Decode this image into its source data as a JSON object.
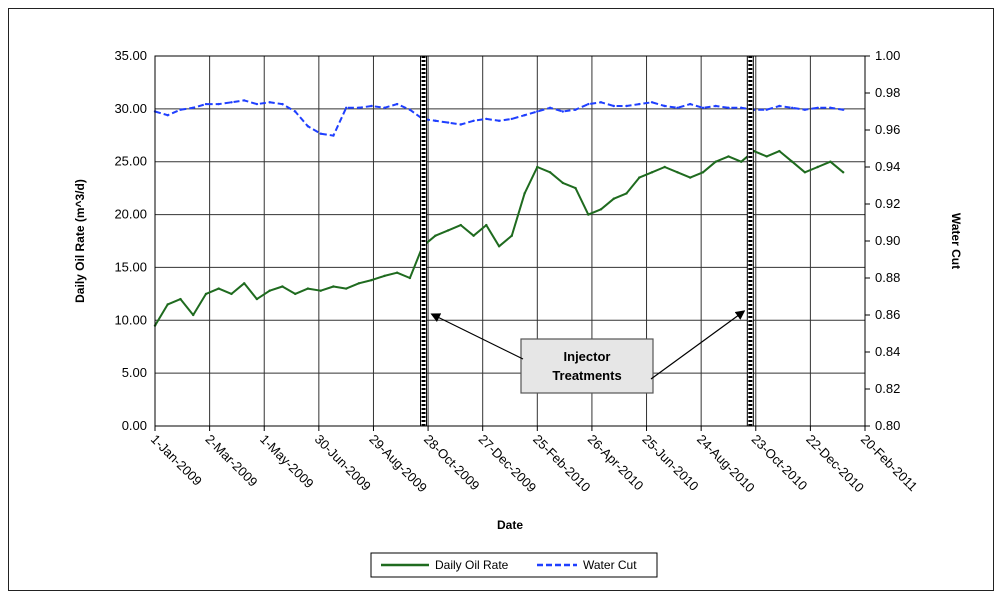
{
  "chart_data": {
    "type": "line",
    "title": "",
    "xlabel": "Date",
    "ylabel": "Daily Oil Rate (m^3/d)",
    "y2label": "Water Cut",
    "x_range": [
      "2009-01-01",
      "2011-02-20"
    ],
    "ylim": [
      0,
      35
    ],
    "y2lim": [
      0.8,
      1.0
    ],
    "x_tick_labels": [
      "1-Jan-2009",
      "2-Mar-2009",
      "1-May-2009",
      "30-Jun-2009",
      "29-Aug-2009",
      "28-Oct-2009",
      "27-Dec-2009",
      "25-Feb-2010",
      "26-Apr-2010",
      "25-Jun-2010",
      "24-Aug-2010",
      "23-Oct-2010",
      "22-Dec-2010",
      "20-Feb-2011"
    ],
    "y_tick_labels": [
      "0.00",
      "5.00",
      "10.00",
      "15.00",
      "20.00",
      "25.00",
      "30.00",
      "35.00"
    ],
    "y2_tick_labels": [
      "0.80",
      "0.82",
      "0.84",
      "0.86",
      "0.88",
      "0.90",
      "0.92",
      "0.94",
      "0.96",
      "0.98",
      "1.00"
    ],
    "grid": true,
    "legend_position": "bottom",
    "series": [
      {
        "name": "Daily Oil Rate",
        "axis": "left",
        "color": "#1f6b1f",
        "style": "solid",
        "points": [
          [
            "2009-01-01",
            9.5
          ],
          [
            "2009-01-15",
            11.5
          ],
          [
            "2009-01-29",
            12.0
          ],
          [
            "2009-02-12",
            10.5
          ],
          [
            "2009-02-26",
            12.5
          ],
          [
            "2009-03-12",
            13.0
          ],
          [
            "2009-03-26",
            12.5
          ],
          [
            "2009-04-09",
            13.5
          ],
          [
            "2009-04-23",
            12.0
          ],
          [
            "2009-05-07",
            12.8
          ],
          [
            "2009-05-21",
            13.2
          ],
          [
            "2009-06-04",
            12.5
          ],
          [
            "2009-06-18",
            13.0
          ],
          [
            "2009-07-02",
            12.8
          ],
          [
            "2009-07-16",
            13.2
          ],
          [
            "2009-07-30",
            13.0
          ],
          [
            "2009-08-13",
            13.5
          ],
          [
            "2009-08-27",
            13.8
          ],
          [
            "2009-09-10",
            14.2
          ],
          [
            "2009-09-24",
            14.5
          ],
          [
            "2009-10-08",
            14.0
          ],
          [
            "2009-10-22",
            17.0
          ],
          [
            "2009-11-05",
            18.0
          ],
          [
            "2009-11-19",
            18.5
          ],
          [
            "2009-12-03",
            19.0
          ],
          [
            "2009-12-17",
            18.0
          ],
          [
            "2009-12-31",
            19.0
          ],
          [
            "2010-01-14",
            17.0
          ],
          [
            "2010-01-28",
            18.0
          ],
          [
            "2010-02-11",
            22.0
          ],
          [
            "2010-02-25",
            24.5
          ],
          [
            "2010-03-11",
            24.0
          ],
          [
            "2010-03-25",
            23.0
          ],
          [
            "2010-04-08",
            22.5
          ],
          [
            "2010-04-22",
            20.0
          ],
          [
            "2010-05-06",
            20.5
          ],
          [
            "2010-05-20",
            21.5
          ],
          [
            "2010-06-03",
            22.0
          ],
          [
            "2010-06-17",
            23.5
          ],
          [
            "2010-07-01",
            24.0
          ],
          [
            "2010-07-15",
            24.5
          ],
          [
            "2010-07-29",
            24.0
          ],
          [
            "2010-08-12",
            23.5
          ],
          [
            "2010-08-26",
            24.0
          ],
          [
            "2010-09-09",
            25.0
          ],
          [
            "2010-09-23",
            25.5
          ],
          [
            "2010-10-07",
            25.0
          ],
          [
            "2010-10-21",
            26.0
          ],
          [
            "2010-11-04",
            25.5
          ],
          [
            "2010-11-18",
            26.0
          ],
          [
            "2010-12-02",
            25.0
          ],
          [
            "2010-12-16",
            24.0
          ],
          [
            "2010-12-30",
            24.5
          ],
          [
            "2011-01-13",
            25.0
          ],
          [
            "2011-01-27",
            24.0
          ]
        ]
      },
      {
        "name": "Water Cut",
        "axis": "right",
        "color": "#1f3fff",
        "style": "dashed",
        "points": [
          [
            "2009-01-01",
            0.97
          ],
          [
            "2009-01-15",
            0.968
          ],
          [
            "2009-01-29",
            0.971
          ],
          [
            "2009-02-12",
            0.972
          ],
          [
            "2009-02-26",
            0.974
          ],
          [
            "2009-03-12",
            0.974
          ],
          [
            "2009-03-26",
            0.975
          ],
          [
            "2009-04-09",
            0.976
          ],
          [
            "2009-04-23",
            0.974
          ],
          [
            "2009-05-07",
            0.975
          ],
          [
            "2009-05-21",
            0.974
          ],
          [
            "2009-06-04",
            0.97
          ],
          [
            "2009-06-18",
            0.962
          ],
          [
            "2009-07-02",
            0.958
          ],
          [
            "2009-07-16",
            0.957
          ],
          [
            "2009-07-30",
            0.972
          ],
          [
            "2009-08-13",
            0.972
          ],
          [
            "2009-08-27",
            0.973
          ],
          [
            "2009-09-10",
            0.972
          ],
          [
            "2009-09-24",
            0.974
          ],
          [
            "2009-10-08",
            0.971
          ],
          [
            "2009-10-22",
            0.966
          ],
          [
            "2009-11-05",
            0.965
          ],
          [
            "2009-11-19",
            0.964
          ],
          [
            "2009-12-03",
            0.963
          ],
          [
            "2009-12-17",
            0.965
          ],
          [
            "2009-12-31",
            0.966
          ],
          [
            "2010-01-14",
            0.965
          ],
          [
            "2010-01-28",
            0.966
          ],
          [
            "2010-02-11",
            0.968
          ],
          [
            "2010-02-25",
            0.97
          ],
          [
            "2010-03-11",
            0.972
          ],
          [
            "2010-03-25",
            0.97
          ],
          [
            "2010-04-08",
            0.971
          ],
          [
            "2010-04-22",
            0.974
          ],
          [
            "2010-05-06",
            0.975
          ],
          [
            "2010-05-20",
            0.973
          ],
          [
            "2010-06-03",
            0.973
          ],
          [
            "2010-06-17",
            0.974
          ],
          [
            "2010-07-01",
            0.975
          ],
          [
            "2010-07-15",
            0.973
          ],
          [
            "2010-07-29",
            0.972
          ],
          [
            "2010-08-12",
            0.974
          ],
          [
            "2010-08-26",
            0.972
          ],
          [
            "2010-09-09",
            0.973
          ],
          [
            "2010-09-23",
            0.972
          ],
          [
            "2010-10-07",
            0.972
          ],
          [
            "2010-10-21",
            0.971
          ],
          [
            "2010-11-04",
            0.971
          ],
          [
            "2010-11-18",
            0.973
          ],
          [
            "2010-12-02",
            0.972
          ],
          [
            "2010-12-16",
            0.971
          ],
          [
            "2010-12-30",
            0.972
          ],
          [
            "2011-01-13",
            0.972
          ],
          [
            "2011-01-27",
            0.971
          ]
        ]
      }
    ],
    "markers": [
      {
        "date": "2009-10-23"
      },
      {
        "date": "2010-10-17"
      }
    ],
    "annotation": {
      "lines": [
        "Injector",
        "Treatments"
      ]
    }
  }
}
